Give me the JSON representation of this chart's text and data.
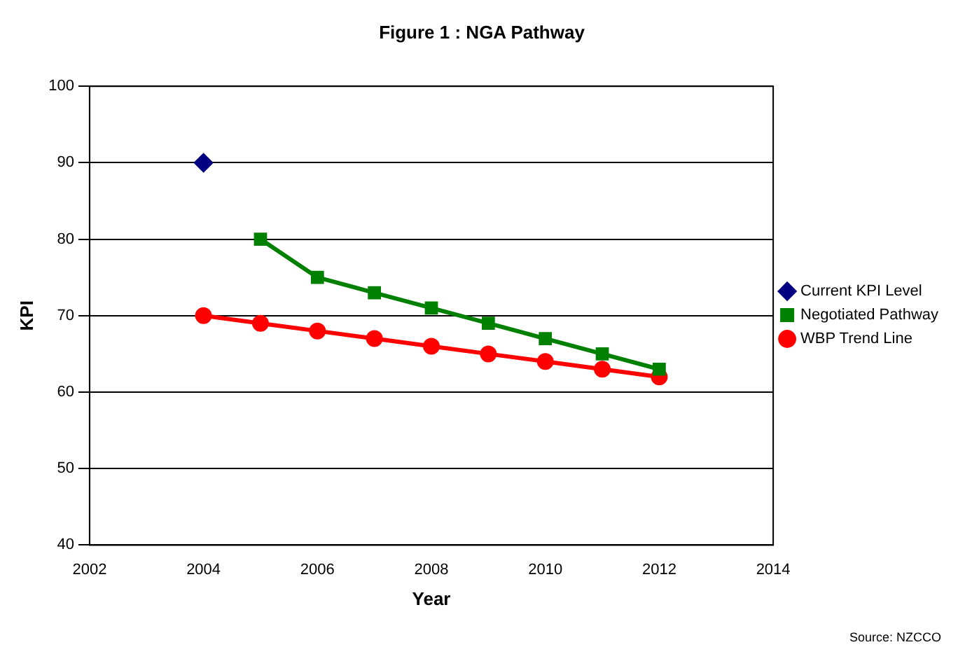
{
  "chart_data": {
    "type": "line",
    "title": "Figure 1 : NGA Pathway",
    "xlabel": "Year",
    "ylabel": "KPI",
    "xlim": [
      2002,
      2014
    ],
    "xticks": [
      2002,
      2004,
      2006,
      2008,
      2010,
      2012,
      2014
    ],
    "ylim": [
      40,
      100
    ],
    "yticks": [
      40,
      50,
      60,
      70,
      80,
      90,
      100
    ],
    "grid": "y",
    "legend": "right",
    "line_style": "solid",
    "series": [
      {
        "name": "Current KPI Level",
        "color": "#000080",
        "marker": "diamond",
        "x": [
          2004
        ],
        "values": [
          90
        ]
      },
      {
        "name": "Negotiated Pathway",
        "color": "#008000",
        "marker": "square",
        "x": [
          2005,
          2006,
          2007,
          2008,
          2009,
          2010,
          2011,
          2012
        ],
        "values": [
          80,
          75,
          73,
          71,
          69,
          67,
          65,
          63
        ]
      },
      {
        "name": "WBP Trend Line",
        "color": "#ff0000",
        "marker": "circle",
        "x": [
          2004,
          2005,
          2006,
          2007,
          2008,
          2009,
          2010,
          2011,
          2012
        ],
        "values": [
          70,
          69,
          68,
          67,
          66,
          65,
          64,
          63,
          62
        ]
      }
    ],
    "annotations": [
      "Source: NZCCO"
    ]
  }
}
